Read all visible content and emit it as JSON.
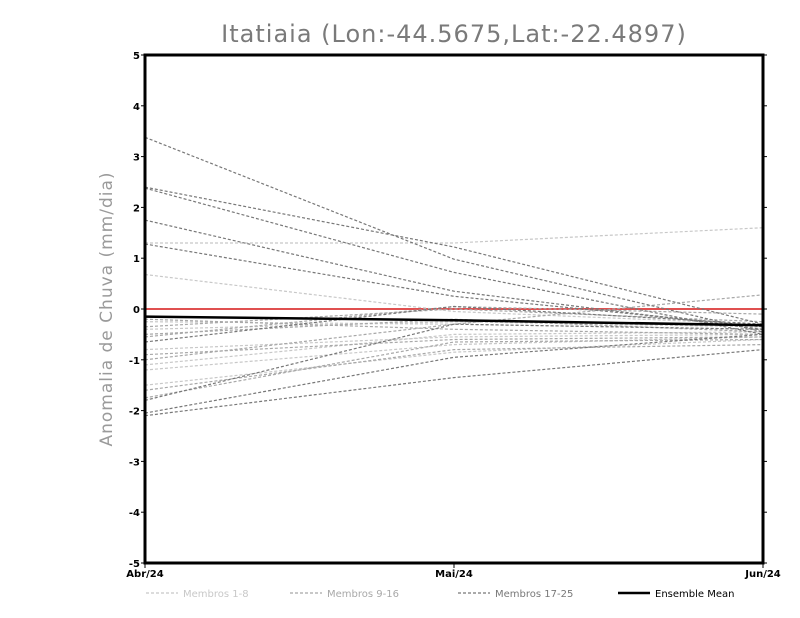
{
  "chart_data": {
    "type": "line",
    "title": "Itatiaia (Lon:-44.5675,Lat:-22.4897)",
    "ylabel": "Anomalia de Chuva (mm/dia)",
    "xlabel": "",
    "categories": [
      "Abr/24",
      "Mai/24",
      "Jun/24"
    ],
    "ylim": [
      -5,
      5
    ],
    "yticks": [
      "5",
      "4",
      "3",
      "2",
      "1",
      "0",
      "-1",
      "-2",
      "-3",
      "-4",
      "-5"
    ],
    "zero_line_color": "#e05050",
    "groups": [
      {
        "name": "Membros 1-8",
        "color": "#c8c8c8",
        "members": [
          [
            0.68,
            -0.05,
            -0.3
          ],
          [
            -0.25,
            -0.3,
            -0.4
          ],
          [
            1.3,
            1.3,
            1.6
          ],
          [
            -0.8,
            -0.55,
            -0.5
          ],
          [
            -1.1,
            -0.5,
            -0.45
          ],
          [
            -1.2,
            -0.7,
            -0.55
          ],
          [
            -1.5,
            -0.85,
            -0.6
          ],
          [
            -0.4,
            -0.25,
            -0.35
          ]
        ]
      },
      {
        "name": "Membros 9-16",
        "color": "#a8a8a8",
        "members": [
          [
            -0.35,
            0.0,
            -0.25
          ],
          [
            -0.5,
            -0.2,
            -0.45
          ],
          [
            -0.9,
            -0.6,
            -0.55
          ],
          [
            -1.0,
            -0.3,
            0.28
          ],
          [
            -1.6,
            -0.8,
            -0.7
          ],
          [
            -1.75,
            -0.65,
            -0.6
          ],
          [
            -0.55,
            0.05,
            -0.1
          ],
          [
            -0.2,
            -0.4,
            -0.5
          ]
        ]
      },
      {
        "name": "Membros 17-25",
        "color": "#787878",
        "members": [
          [
            3.38,
            0.98,
            -0.45
          ],
          [
            2.4,
            1.22,
            -0.3
          ],
          [
            2.38,
            0.72,
            -0.5
          ],
          [
            1.75,
            0.35,
            -0.4
          ],
          [
            1.28,
            0.25,
            -0.35
          ],
          [
            -2.1,
            -1.35,
            -0.8
          ],
          [
            -2.05,
            -0.95,
            -0.5
          ],
          [
            -1.8,
            -0.3,
            -0.4
          ],
          [
            -0.65,
            0.05,
            -0.3
          ]
        ]
      }
    ],
    "ensemble_mean": {
      "name": "Ensemble Mean",
      "color": "#000000",
      "values": [
        -0.15,
        -0.22,
        -0.32
      ]
    }
  }
}
